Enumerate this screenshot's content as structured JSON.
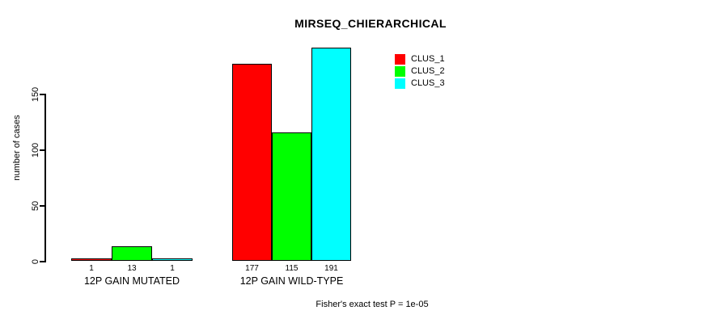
{
  "title": "MIRSEQ_CHIERARCHICAL",
  "footnote": "Fisher's exact test P = 1e-05",
  "chart_data": {
    "type": "bar",
    "title": "MIRSEQ_CHIERARCHICAL",
    "xlabel": "",
    "ylabel": "number of cases",
    "ylim": [
      0,
      191
    ],
    "yticks": [
      0,
      50,
      100,
      150
    ],
    "grid": false,
    "legend_position": "top-right",
    "categories": [
      "12P GAIN MUTATED",
      "12P GAIN WILD-TYPE"
    ],
    "series": [
      {
        "name": "CLUS_1",
        "color": "#ff0000",
        "values": [
          1,
          177
        ]
      },
      {
        "name": "CLUS_2",
        "color": "#00ff00",
        "values": [
          13,
          115
        ]
      },
      {
        "name": "CLUS_3",
        "color": "#00ffff",
        "values": [
          1,
          191
        ]
      }
    ],
    "bar_labels": [
      [
        "1",
        "13",
        "1"
      ],
      [
        "177",
        "115",
        "191"
      ]
    ],
    "annotation": "Fisher's exact test P = 1e-05",
    "axis_color": "#000000",
    "bar_border_color": "#000000"
  }
}
